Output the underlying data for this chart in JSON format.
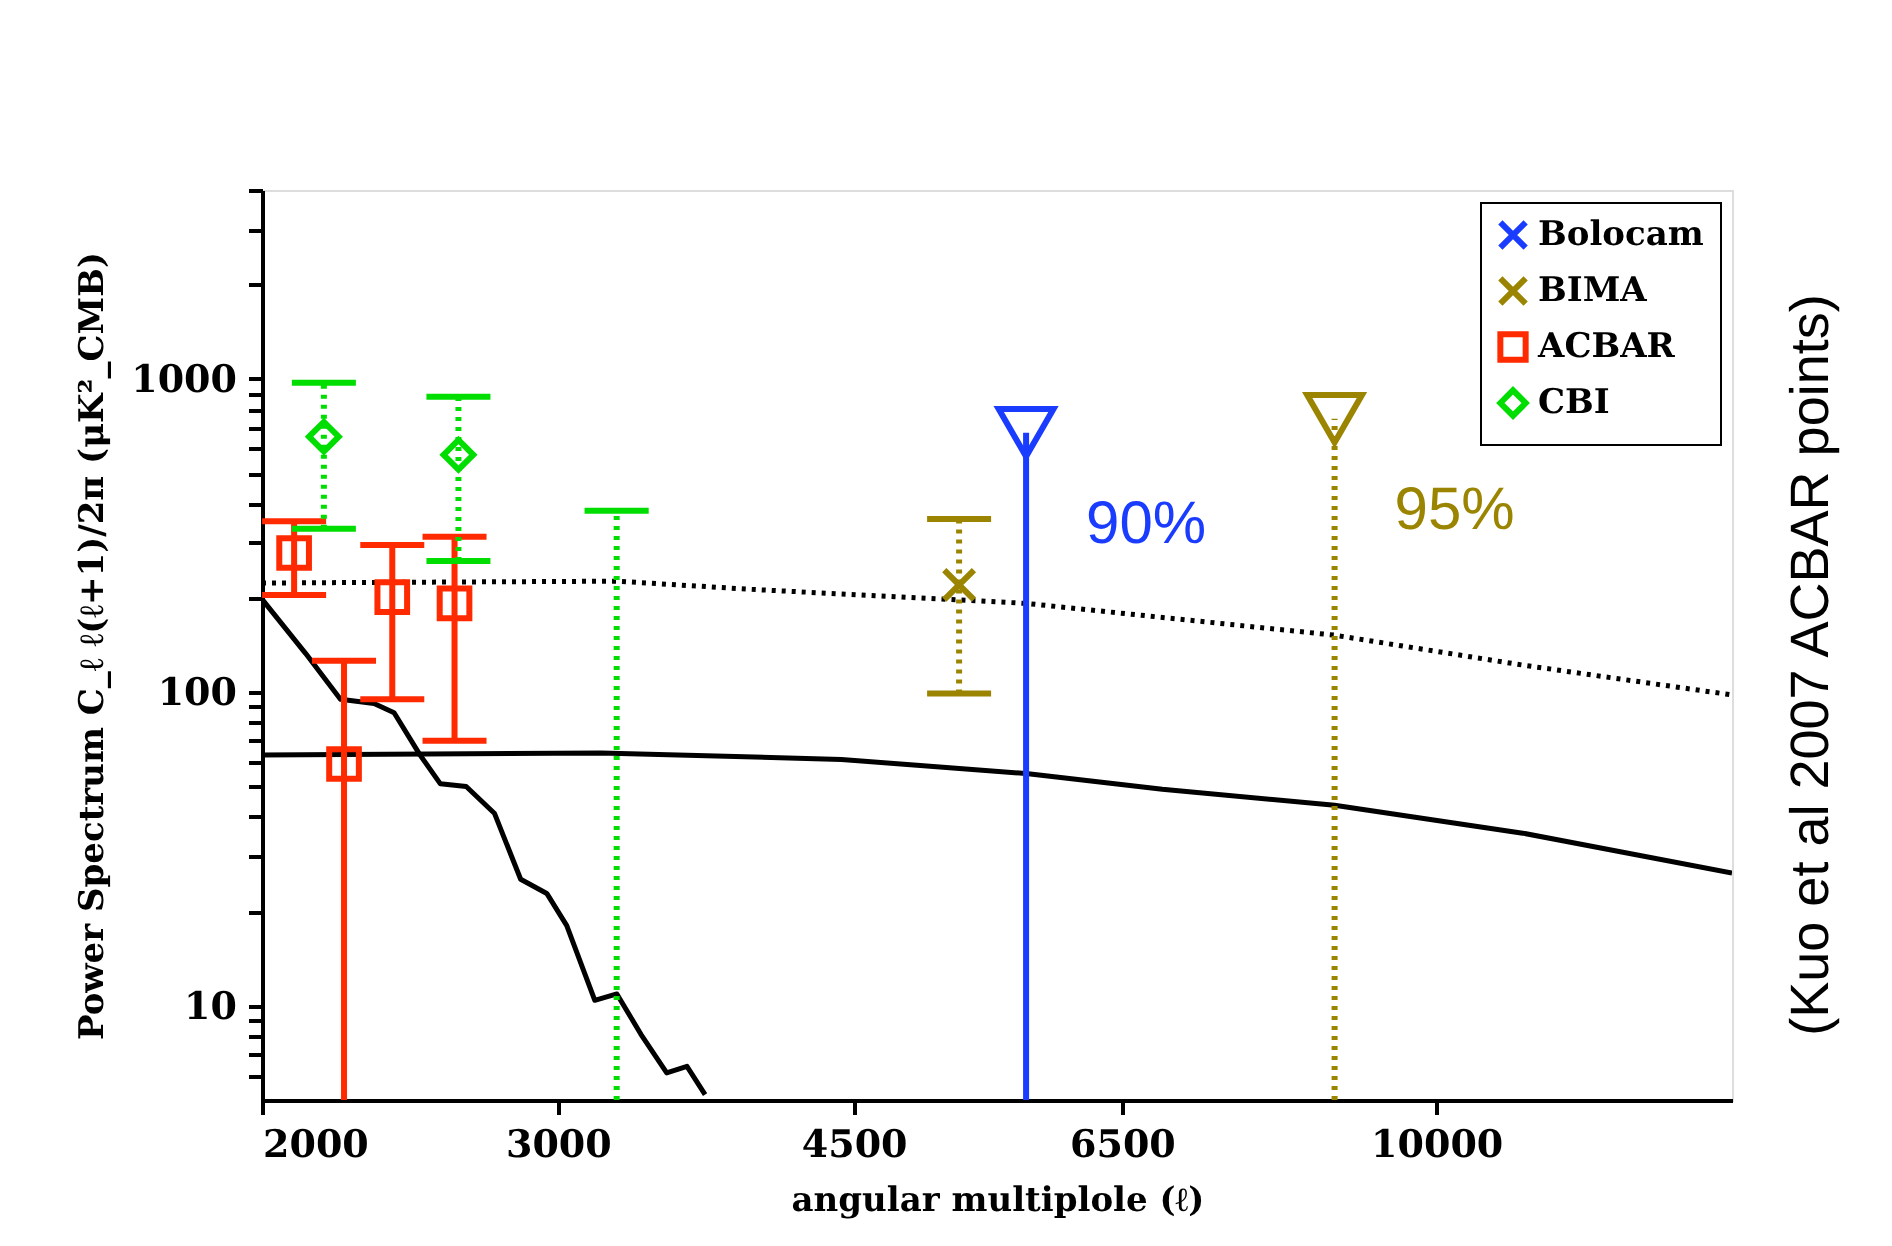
{
  "chart_data": {
    "type": "scatter",
    "xlabel": "angular multiplole (ℓ)",
    "ylabel": "Power Spectrum C_ℓ ℓ(ℓ+1)/2π (μK²_CMB)",
    "log": "xy",
    "xlim": [
      2000,
      15000
    ],
    "xticks": [
      2000,
      3000,
      4500,
      6500,
      10000
    ],
    "ylim": [
      5,
      4000
    ],
    "yticks": [
      {
        "value": 6,
        "label": null
      },
      {
        "value": 7,
        "label": null
      },
      {
        "value": 8,
        "label": null
      },
      {
        "value": 9,
        "label": null
      },
      10,
      {
        "value": 20,
        "label": null
      },
      {
        "value": 30,
        "label": null
      },
      {
        "value": 40,
        "label": null
      },
      {
        "value": 50,
        "label": null
      },
      {
        "value": 60,
        "label": null
      },
      {
        "value": 70,
        "label": null
      },
      {
        "value": 80,
        "label": null
      },
      {
        "value": 90,
        "label": null
      },
      100,
      {
        "value": 200,
        "label": null
      },
      {
        "value": 300,
        "label": null
      },
      {
        "value": 400,
        "label": null
      },
      {
        "value": 500,
        "label": null
      },
      {
        "value": 600,
        "label": null
      },
      {
        "value": 700,
        "label": null
      },
      {
        "value": 800,
        "label": null
      },
      {
        "value": 900,
        "label": null
      },
      1000,
      {
        "value": 2000,
        "label": null
      },
      {
        "value": 3000,
        "label": null
      },
      {
        "value": 4000,
        "label": null
      }
    ],
    "grid": false,
    "legend": "top right",
    "series": [
      {
        "type": "line",
        "color": "#000000",
        "line_style": "solid",
        "x": [
          2000,
          3184,
          4425,
          5700,
          6870,
          8700,
          11260,
          15000
        ],
        "values": [
          63,
          64,
          61,
          55,
          49,
          43.6,
          35.5,
          26.5
        ]
      },
      {
        "type": "line",
        "color": "#000000",
        "line_style": "dotted",
        "x": [
          2000,
          3252,
          3900,
          5700,
          8700,
          11260,
          15000
        ],
        "values": [
          223,
          226,
          213,
          192,
          152,
          122,
          98
        ]
      },
      {
        "type": "line",
        "color": "#000000",
        "line_style": "solid",
        "x": [
          2000,
          2123,
          2227,
          2332,
          2397,
          2484,
          2554,
          2646,
          2751,
          2851,
          2955,
          3037,
          3156,
          3253,
          3362,
          3483,
          3581,
          3671
        ],
        "values": [
          198,
          133,
          95,
          92,
          86,
          63,
          51,
          50,
          41,
          25.3,
          22.8,
          18,
          10.4,
          10.9,
          8.1,
          6.1,
          6.4,
          5.2
        ]
      },
      {
        "type": "scatter",
        "name": "Bolocam",
        "color": "#1a3cff",
        "marker": "cross"
      },
      {
        "type": "scatter",
        "name": "BIMA",
        "color": "#9a8400",
        "marker": "cross",
        "line_style": "dotted",
        "x": [
          5200
        ],
        "values": [
          220
        ],
        "errors": [
          [
            99,
            357
          ]
        ]
      },
      {
        "type": "scatter",
        "name": "ACBAR",
        "color": "#ff2a00",
        "marker": "square",
        "line_style": "solid",
        "x": [
          2090,
          2238,
          2391,
          2604
        ],
        "values": [
          278,
          59,
          201,
          192
        ],
        "errors": [
          [
            204,
            351
          ],
          [
            5,
            126
          ],
          [
            95,
            295
          ],
          [
            70,
            313
          ]
        ]
      },
      {
        "type": "scatter",
        "name": "CBI",
        "color": "#00dd00",
        "marker": "diamond",
        "line_style": "dotted",
        "x": [
          2177,
          2618
        ],
        "values": [
          653,
          572
        ],
        "errors": [
          [
            332,
            971
          ],
          [
            262,
            876
          ]
        ]
      },
      {
        "type": "line",
        "color": "#00dd00",
        "line_style": "dotted",
        "x": [
          3252,
          3252
        ],
        "values": [
          5,
          379
        ]
      },
      {
        "type": "line",
        "color": "#00dd00",
        "line_style": "solid",
        "x": [
          3112,
          3398
        ],
        "values": [
          379,
          379
        ]
      },
      {
        "type": "scatter",
        "color": "#1a3cff",
        "marker": "triangle",
        "line_style": "solid",
        "x": [
          5700
        ],
        "values": [
          672
        ],
        "errors": [
          [
            5,
            672
          ]
        ]
      },
      {
        "type": "scatter",
        "color": "#9a8400",
        "marker": "triangle",
        "line_style": "dotted",
        "x": [
          8700
        ],
        "values": [
          745
        ],
        "errors": [
          [
            5,
            745
          ]
        ]
      }
    ],
    "annotations": [
      {
        "text": "90%",
        "x": 5700,
        "y": 672
      },
      {
        "text": "95%",
        "x": 8700,
        "y": 745
      },
      "(Kuo et al 2007 ACBAR points)"
    ]
  }
}
